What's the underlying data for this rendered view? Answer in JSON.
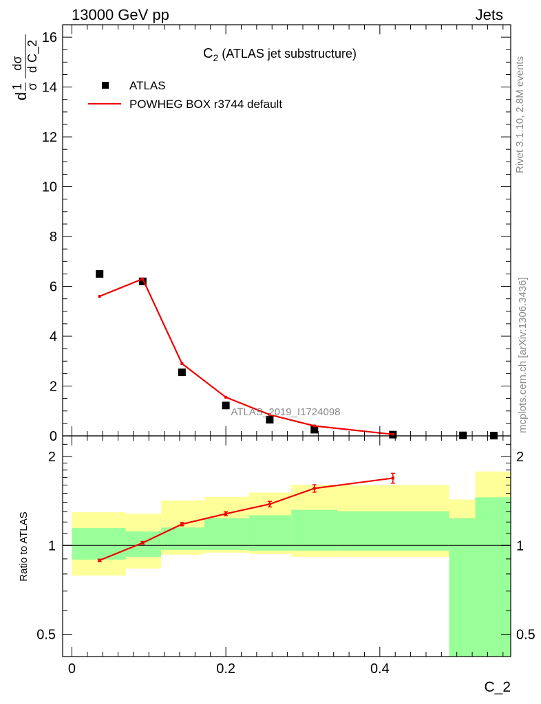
{
  "header": {
    "left": "13000 GeV pp",
    "right": "Jets"
  },
  "side": {
    "rivet": "Rivet 3.1.10,  2.8M events",
    "mcplots": "mcplots.cern.ch [arXiv:1306.3436]"
  },
  "chart_data": [
    {
      "type": "scatter",
      "title": "C_2 (ATLAS jet substructure)",
      "title_main": "C",
      "title_sub": "2",
      "title_rest": " (ATLAS jet substructure)",
      "ylabel_parts": [
        "d",
        "1",
        "σ",
        "dσ",
        "d C_2"
      ],
      "watermark": "ATLAS_2019_I1724098",
      "xlim": [
        -0.012,
        0.57
      ],
      "ylim": [
        0,
        16.5
      ],
      "yticks": [
        0,
        2,
        4,
        6,
        8,
        10,
        12,
        14,
        16
      ],
      "yticklabels": [
        "0",
        "2",
        "4",
        "6",
        "8",
        "10",
        "12",
        "14",
        "16"
      ],
      "legend": {
        "position": "top-left",
        "entries": [
          "ATLAS",
          "POWHEG BOX r3744 default"
        ]
      },
      "series": [
        {
          "name": "ATLAS",
          "style": "markers",
          "color": "#000000",
          "x": [
            0.036,
            0.092,
            0.143,
            0.2,
            0.257,
            0.315,
            0.417,
            0.508,
            0.548
          ],
          "y": [
            6.5,
            6.2,
            2.55,
            1.22,
            0.65,
            0.25,
            0.05,
            0.02,
            0.01
          ]
        },
        {
          "name": "POWHEG BOX r3744 default",
          "style": "line",
          "color": "#ee0000",
          "x": [
            0.036,
            0.092,
            0.143,
            0.2,
            0.257,
            0.315,
            0.417
          ],
          "y": [
            5.6,
            6.3,
            2.9,
            1.55,
            0.85,
            0.4,
            0.06
          ]
        }
      ]
    },
    {
      "type": "line",
      "ylabel": "Ratio to ATLAS",
      "xlabel": "C_2",
      "log_y": true,
      "xlim": [
        -0.012,
        0.57
      ],
      "ylim": [
        0.42,
        2.35
      ],
      "xticks": [
        0,
        0.2,
        0.4
      ],
      "xticklabels": [
        "0",
        "0.2",
        "0.4"
      ],
      "yticks": [
        0.5,
        1,
        2
      ],
      "yticklabels": [
        "0.5",
        "1",
        "2"
      ],
      "reference_line": 1,
      "bands": {
        "bin_edges": [
          0,
          0.07,
          0.116,
          0.172,
          0.23,
          0.285,
          0.345,
          0.49,
          0.524,
          0.57
        ],
        "total_color": "#ffff99",
        "total_lo": [
          0.79,
          0.835,
          0.93,
          0.945,
          0.935,
          0.915,
          0.915,
          0.42,
          0.42
        ],
        "total_hi": [
          1.295,
          1.28,
          1.42,
          1.46,
          1.51,
          1.605,
          1.6,
          1.43,
          1.78
        ],
        "stat_color": "#99ff99",
        "stat_lo": [
          0.895,
          0.915,
          0.965,
          0.965,
          0.96,
          0.96,
          0.96,
          0.42,
          0.42
        ],
        "stat_hi": [
          1.145,
          1.115,
          1.15,
          1.235,
          1.265,
          1.32,
          1.305,
          1.235,
          1.455
        ]
      },
      "series": [
        {
          "name": "POWHEG BOX r3744 default",
          "color": "#ee0000",
          "x": [
            0.036,
            0.092,
            0.143,
            0.2,
            0.257,
            0.315,
            0.417
          ],
          "y": [
            0.89,
            1.02,
            1.18,
            1.28,
            1.38,
            1.56,
            1.69
          ],
          "err": [
            0.008,
            0.01,
            0.015,
            0.02,
            0.03,
            0.045,
            0.065
          ]
        }
      ]
    }
  ]
}
